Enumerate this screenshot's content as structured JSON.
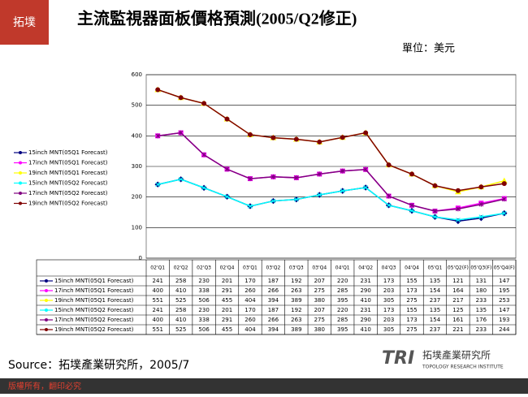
{
  "header": {
    "title": "主流監視器面板價格預測(2005/Q2修正)",
    "unit": "單位：美元"
  },
  "chart_data": {
    "type": "line",
    "categories": [
      "02'Q1",
      "02'Q2",
      "02'Q3",
      "02'Q4",
      "03'Q1",
      "03'Q2",
      "03'Q3",
      "03'Q4",
      "04'Q1",
      "04'Q2",
      "04'Q3",
      "04'Q4",
      "05'Q1",
      "05'Q2(F)",
      "05'Q3(F)",
      "05'Q4(F)"
    ],
    "series": [
      {
        "name": "15inch MNT(05Q1 Forecast)",
        "color": "#000080",
        "marker": "diamond",
        "values": [
          241,
          258,
          230,
          201,
          170,
          187,
          192,
          207,
          220,
          231,
          173,
          155,
          135,
          121,
          131,
          147
        ]
      },
      {
        "name": "17inch MNT(05Q1 Forecast)",
        "color": "#ff00ff",
        "marker": "square",
        "values": [
          400,
          410,
          338,
          291,
          260,
          266,
          263,
          275,
          285,
          290,
          203,
          173,
          154,
          164,
          180,
          195
        ]
      },
      {
        "name": "19inch MNT(05Q1 Forecast)",
        "color": "#ffff00",
        "marker": "triangle",
        "values": [
          551,
          525,
          506,
          455,
          404,
          394,
          389,
          380,
          395,
          410,
          305,
          275,
          237,
          217,
          233,
          253
        ]
      },
      {
        "name": "15inch MNT(05Q2 Forecast)",
        "color": "#00ffff",
        "marker": "x",
        "values": [
          241,
          258,
          230,
          201,
          170,
          187,
          192,
          207,
          220,
          231,
          173,
          155,
          135,
          125,
          135,
          147
        ]
      },
      {
        "name": "17inch MNT(05Q2 Forecast)",
        "color": "#800080",
        "marker": "star",
        "values": [
          400,
          410,
          338,
          291,
          260,
          266,
          263,
          275,
          285,
          290,
          203,
          173,
          154,
          161,
          176,
          193
        ]
      },
      {
        "name": "19inch MNT(05Q2 Forecast)",
        "color": "#800000",
        "marker": "circle",
        "values": [
          551,
          525,
          506,
          455,
          404,
          394,
          389,
          380,
          395,
          410,
          305,
          275,
          237,
          221,
          233,
          244
        ]
      }
    ],
    "ylim": [
      0,
      600
    ],
    "yticks": [
      0,
      100,
      200,
      300,
      400,
      500,
      600
    ],
    "grid": true
  },
  "footer": {
    "source": "Source：拓墣產業研究所，2005/7",
    "copyright": "版權所有，翻印必究",
    "logo": "TRI",
    "org": "拓墣產業研究所",
    "org_en": "TOPOLOGY RESEARCH INSTITUTE"
  }
}
